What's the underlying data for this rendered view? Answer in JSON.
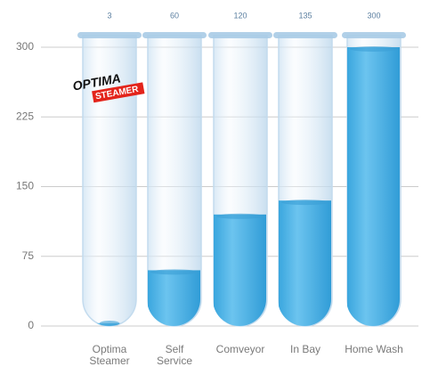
{
  "chart_data": {
    "type": "bar",
    "categories": [
      "Optima\nSteamer",
      "Self\nService",
      "Comveyor",
      "In Bay",
      "Home Wash"
    ],
    "values": [
      3,
      60,
      120,
      135,
      300
    ],
    "color": "#4db2e6",
    "ylim": [
      0,
      300
    ],
    "yticks": [
      0,
      75,
      150,
      225,
      300
    ],
    "grid": true,
    "logo": {
      "line1": "OPTIMA",
      "line2": "STEAMER"
    }
  }
}
